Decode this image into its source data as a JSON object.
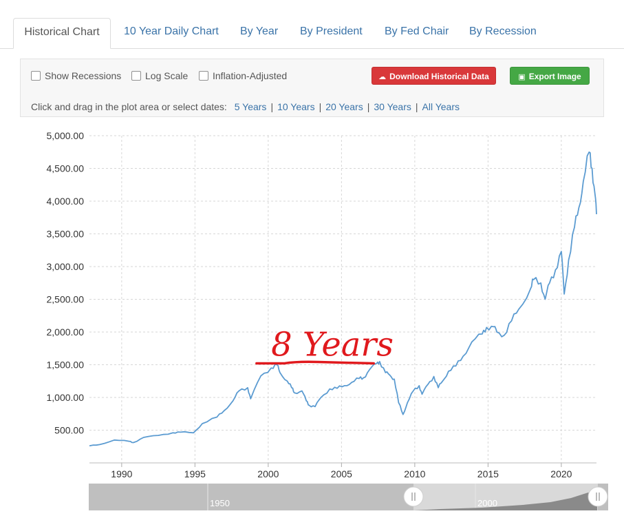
{
  "tabs": [
    {
      "label": "Historical Chart",
      "active": true
    },
    {
      "label": "10 Year Daily Chart"
    },
    {
      "label": "By Year"
    },
    {
      "label": "By President"
    },
    {
      "label": "By Fed Chair"
    },
    {
      "label": "By Recession"
    }
  ],
  "options": {
    "show_recessions": "Show Recessions",
    "log_scale": "Log Scale",
    "inflation_adjusted": "Inflation-Adjusted"
  },
  "buttons": {
    "download": "Download Historical Data",
    "export": "Export Image"
  },
  "date_hint": {
    "text": "Click and drag in the plot area or select dates:",
    "ranges": [
      "5 Years",
      "10 Years",
      "20 Years",
      "30 Years",
      "All Years"
    ]
  },
  "colors": {
    "line": "#5b9bd1",
    "annotation": "#e0191d",
    "accent": "#3a73a8",
    "download_button": "#d9383a",
    "export_button": "#45a845"
  },
  "navigator": {
    "labels": [
      "1950",
      "2000"
    ]
  },
  "chart_data": {
    "type": "line",
    "grid": true,
    "ylim": [
      0,
      5000
    ],
    "y_ticks": [
      500,
      1000,
      1500,
      2000,
      2500,
      3000,
      3500,
      4000,
      4500,
      5000
    ],
    "y_tick_labels": [
      "500.00",
      "1,000.00",
      "1,500.00",
      "2,000.00",
      "2,500.00",
      "3,000.00",
      "3,500.00",
      "4,000.00",
      "4,500.00",
      "5,000.00"
    ],
    "xlim": [
      1987.8,
      2022.4
    ],
    "x_ticks": [
      1990,
      1995,
      2000,
      2005,
      2010,
      2015,
      2020
    ],
    "x_tick_labels": [
      "1990",
      "1995",
      "2000",
      "2005",
      "2010",
      "2015",
      "2020"
    ],
    "x": [
      1987.8,
      1988.5,
      1989.5,
      1990.5,
      1990.8,
      1991.5,
      1992.5,
      1993.5,
      1994.0,
      1994.9,
      1995.5,
      1996.5,
      1997.0,
      1997.6,
      1998.0,
      1998.6,
      1998.8,
      1999.5,
      2000.2,
      2000.6,
      2000.8,
      2001.3,
      2001.6,
      2001.8,
      2002.3,
      2002.6,
      2002.8,
      2003.2,
      2003.6,
      2004.2,
      2004.7,
      2005.2,
      2005.7,
      2006.2,
      2006.5,
      2006.9,
      2007.4,
      2007.6,
      2008.0,
      2008.3,
      2008.6,
      2008.9,
      2009.2,
      2009.5,
      2009.9,
      2010.3,
      2010.5,
      2010.9,
      2011.3,
      2011.6,
      2011.9,
      2012.3,
      2012.8,
      2013.3,
      2013.9,
      2014.6,
      2014.9,
      2015.4,
      2015.6,
      2016.1,
      2016.6,
      2017.1,
      2017.9,
      2018.1,
      2018.6,
      2018.9,
      2019.2,
      2019.6,
      2020.0,
      2020.2,
      2020.5,
      2020.9,
      2021.2,
      2021.5,
      2021.9,
      2022.1,
      2022.3,
      2022.4
    ],
    "values": [
      260,
      280,
      350,
      330,
      310,
      390,
      420,
      460,
      470,
      460,
      600,
      700,
      800,
      950,
      1100,
      1150,
      980,
      1330,
      1450,
      1500,
      1380,
      1250,
      1150,
      1070,
      1100,
      950,
      880,
      860,
      1000,
      1130,
      1140,
      1180,
      1230,
      1290,
      1300,
      1420,
      1520,
      1550,
      1380,
      1340,
      1280,
      920,
      740,
      920,
      1100,
      1180,
      1050,
      1200,
      1320,
      1150,
      1250,
      1400,
      1480,
      1630,
      1850,
      1970,
      2070,
      2080,
      2000,
      1950,
      2170,
      2350,
      2660,
      2800,
      2750,
      2500,
      2750,
      2950,
      3230,
      2580,
      3100,
      3600,
      3900,
      4300,
      4750,
      4500,
      4100,
      3800
    ]
  },
  "annotation": {
    "text": "8 Years",
    "start_x": 1999.2,
    "end_x": 2007.2,
    "y_value": 1510
  }
}
